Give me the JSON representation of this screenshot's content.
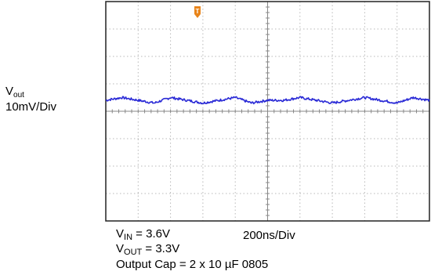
{
  "chart_data": {
    "type": "line",
    "title": "",
    "y_axis_label_symbol": "V",
    "y_axis_label_subscript": "out",
    "y_axis_scale": "10mV/Div",
    "x_axis_scale": "200ns/Div",
    "x_divisions": 10,
    "y_divisions": 8,
    "trigger_marker": "T",
    "series": [
      {
        "color": "#2a2ad6",
        "x_ns": [
          0,
          100,
          200,
          300,
          400,
          500,
          600,
          700,
          800,
          900,
          1000,
          1100,
          1200,
          1300,
          1400,
          1500,
          1600,
          1700,
          1800,
          1900,
          2000
        ],
        "y_mv": [
          0,
          1,
          0,
          -1,
          1,
          0,
          -1,
          0,
          1,
          -1,
          0,
          0,
          1,
          0,
          -1,
          0,
          1,
          0,
          -1,
          1,
          0
        ]
      }
    ]
  },
  "conditions": {
    "vin_symbol": "V",
    "vin_sub": "IN",
    "vin_value": " = 3.6V",
    "vout_symbol": "V",
    "vout_sub": "OUT",
    "vout_value": " = 3.3V",
    "output_cap": "Output Cap = 2 x 10 µF 0805"
  },
  "colors": {
    "trace": "#2a2ad6",
    "trigger": "#e8841a",
    "grid": "#b8b8b8",
    "frame": "#222222"
  }
}
